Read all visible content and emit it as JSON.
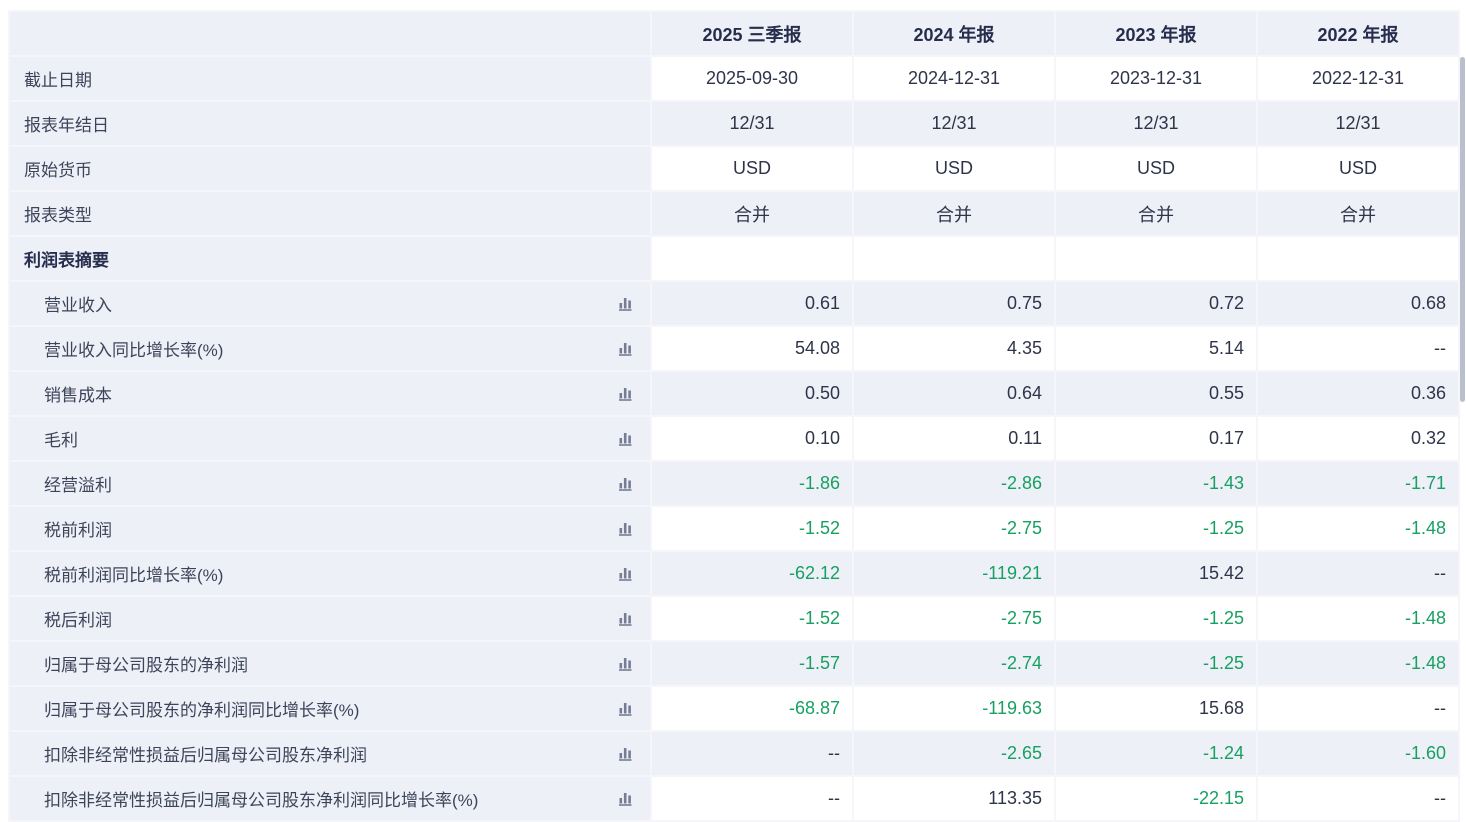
{
  "table": {
    "columns": [
      "2025 三季报",
      "2024 年报",
      "2023 年报",
      "2022 年报"
    ],
    "rows": [
      {
        "label": "截止日期",
        "type": "info",
        "values": [
          "2025-09-30",
          "2024-12-31",
          "2023-12-31",
          "2022-12-31"
        ]
      },
      {
        "label": "报表年结日",
        "type": "info",
        "values": [
          "12/31",
          "12/31",
          "12/31",
          "12/31"
        ]
      },
      {
        "label": "原始货币",
        "type": "info",
        "values": [
          "USD",
          "USD",
          "USD",
          "USD"
        ]
      },
      {
        "label": "报表类型",
        "type": "info",
        "values": [
          "合并",
          "合并",
          "合并",
          "合并"
        ]
      },
      {
        "label": "利润表摘要",
        "type": "section",
        "values": [
          "",
          "",
          "",
          ""
        ]
      },
      {
        "label": "营业收入",
        "type": "metric",
        "values": [
          "0.61",
          "0.75",
          "0.72",
          "0.68"
        ]
      },
      {
        "label": "营业收入同比增长率(%)",
        "type": "metric",
        "values": [
          "54.08",
          "4.35",
          "5.14",
          "--"
        ]
      },
      {
        "label": "销售成本",
        "type": "metric",
        "values": [
          "0.50",
          "0.64",
          "0.55",
          "0.36"
        ]
      },
      {
        "label": "毛利",
        "type": "metric",
        "values": [
          "0.10",
          "0.11",
          "0.17",
          "0.32"
        ]
      },
      {
        "label": "经营溢利",
        "type": "metric",
        "values": [
          "-1.86",
          "-2.86",
          "-1.43",
          "-1.71"
        ]
      },
      {
        "label": "税前利润",
        "type": "metric",
        "values": [
          "-1.52",
          "-2.75",
          "-1.25",
          "-1.48"
        ]
      },
      {
        "label": "税前利润同比增长率(%)",
        "type": "metric",
        "values": [
          "-62.12",
          "-119.21",
          "15.42",
          "--"
        ]
      },
      {
        "label": "税后利润",
        "type": "metric",
        "values": [
          "-1.52",
          "-2.75",
          "-1.25",
          "-1.48"
        ]
      },
      {
        "label": "归属于母公司股东的净利润",
        "type": "metric",
        "values": [
          "-1.57",
          "-2.74",
          "-1.25",
          "-1.48"
        ]
      },
      {
        "label": "归属于母公司股东的净利润同比增长率(%)",
        "type": "metric",
        "values": [
          "-68.87",
          "-119.63",
          "15.68",
          "--"
        ]
      },
      {
        "label": "扣除非经常性损益后归属母公司股东净利润",
        "type": "metric",
        "values": [
          "--",
          "-2.65",
          "-1.24",
          "-1.60"
        ]
      },
      {
        "label": "扣除非经常性损益后归属母公司股东净利润同比增长率(%)",
        "type": "metric",
        "values": [
          "--",
          "113.35",
          "-22.15",
          "--"
        ]
      }
    ]
  },
  "icons": {
    "metric_icon": "bar-chart-icon"
  },
  "colors": {
    "row_highlight_bg": "#eef0f8",
    "negative_value": "#17a062",
    "header_text": "#272d4d",
    "label_text": "#3d4459",
    "value_text": "#2f3549",
    "icon": "#767d93"
  }
}
